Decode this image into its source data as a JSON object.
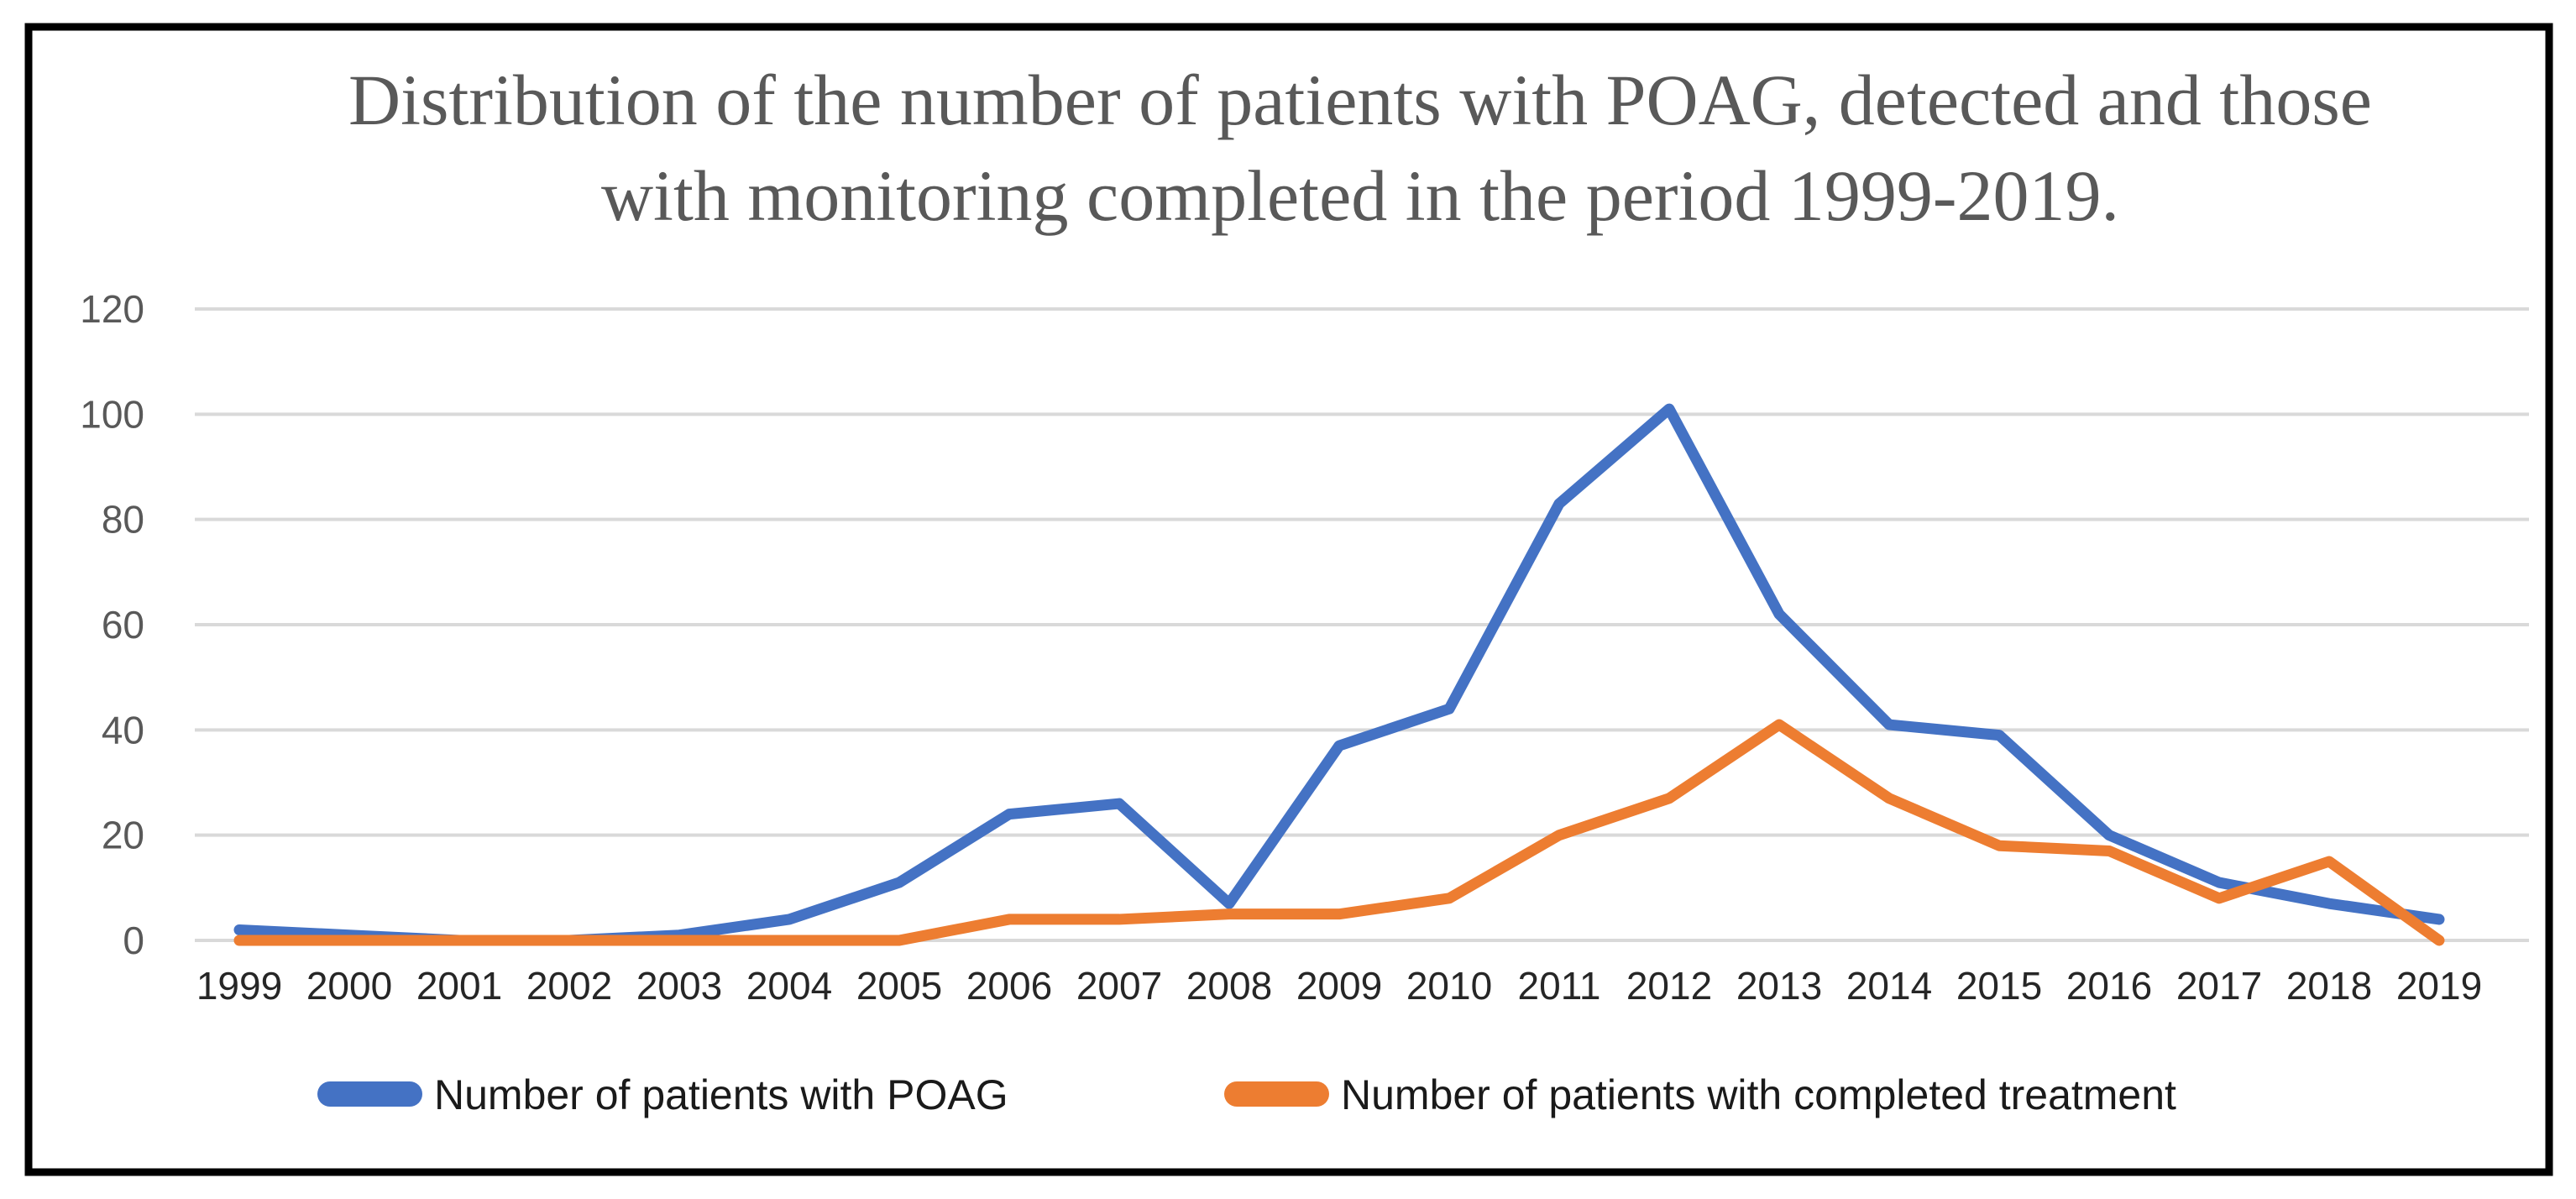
{
  "chart_data": {
    "type": "line",
    "title": "Distribution of the number of patients with POAG, detected and those with monitoring completed in the period 1999-2019.",
    "title_lines": [
      "Distribution of the number of patients with POAG, detected and those",
      "with monitoring completed in the period 1999-2019."
    ],
    "categories": [
      "1999",
      "2000",
      "2001",
      "2002",
      "2003",
      "2004",
      "2005",
      "2006",
      "2007",
      "2008",
      "2009",
      "2010",
      "2011",
      "2012",
      "2013",
      "2014",
      "2015",
      "2016",
      "2017",
      "2018",
      "2019"
    ],
    "series": [
      {
        "name": "Number of patients with POAG",
        "color": "#4472C4",
        "values": [
          2,
          1,
          0,
          0,
          1,
          4,
          11,
          24,
          26,
          7,
          37,
          44,
          83,
          101,
          62,
          41,
          39,
          20,
          11,
          7,
          4
        ]
      },
      {
        "name": "Number of patients with completed treatment",
        "color": "#ED7D31",
        "values": [
          0,
          0,
          0,
          0,
          0,
          0,
          0,
          4,
          4,
          5,
          5,
          8,
          20,
          27,
          41,
          27,
          18,
          17,
          8,
          15,
          0
        ]
      }
    ],
    "xlabel": "",
    "ylabel": "",
    "ylim": [
      0,
      120
    ],
    "yticks": [
      0,
      20,
      40,
      60,
      80,
      100,
      120
    ],
    "grid": true,
    "legend_position": "bottom"
  },
  "colors": {
    "series_poag": "#4472C4",
    "series_completed": "#ED7D31",
    "gridline": "#D9D9D9",
    "title_text": "#595959",
    "y_axis_labels": "#595959",
    "x_axis_labels": "#262626",
    "legend_text": "#1a1a1a",
    "border": "#000000",
    "background": "#FFFFFF"
  }
}
